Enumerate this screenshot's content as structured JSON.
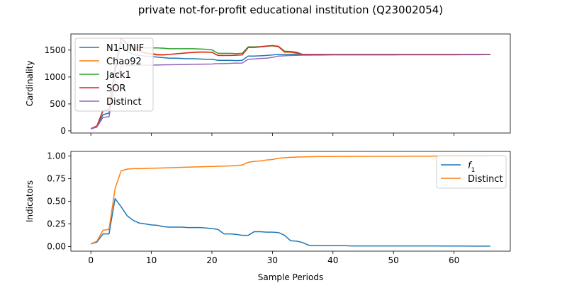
{
  "figure": {
    "title": "private not-for-profit educational institution (Q23002054)",
    "xlabel": "Sample Periods"
  },
  "chart_data": [
    {
      "type": "line",
      "ylabel": "Cardinality",
      "xlim": [
        -3.3,
        69.3
      ],
      "ylim": [
        -40,
        1800
      ],
      "xticks": [
        0,
        10,
        20,
        30,
        40,
        50,
        60
      ],
      "yticks": [
        0,
        500,
        1000,
        1500
      ],
      "show_xtick_labels": false,
      "legend": "top-left",
      "x": [
        0,
        1,
        2,
        3,
        4,
        5,
        6,
        7,
        8,
        9,
        10,
        11,
        12,
        13,
        14,
        15,
        16,
        17,
        18,
        19,
        20,
        21,
        22,
        23,
        24,
        25,
        26,
        27,
        28,
        29,
        30,
        31,
        32,
        33,
        34,
        35,
        36,
        37,
        38,
        39,
        40,
        41,
        42,
        43,
        44,
        45,
        46,
        47,
        48,
        49,
        50,
        51,
        52,
        53,
        54,
        55,
        56,
        57,
        58,
        59,
        60,
        61,
        62,
        63,
        64,
        65,
        66
      ],
      "series": [
        {
          "name": "N1-UNIF",
          "color": "#1f77b4",
          "values": [
            40,
            80,
            300,
            330,
            1080,
            1650,
            1480,
            1420,
            1400,
            1390,
            1380,
            1370,
            1360,
            1350,
            1350,
            1345,
            1340,
            1340,
            1335,
            1330,
            1330,
            1310,
            1310,
            1310,
            1305,
            1310,
            1390,
            1390,
            1395,
            1400,
            1410,
            1420,
            1420,
            1420,
            1420,
            1415,
            1415,
            1415,
            1415,
            1415,
            1415,
            1415,
            1415,
            1415,
            1415,
            1415,
            1415,
            1415,
            1415,
            1415,
            1415,
            1415,
            1415,
            1415,
            1415,
            1415,
            1415,
            1415,
            1415,
            1415,
            1415,
            1415,
            1415,
            1415,
            1415,
            1415,
            1415
          ]
        },
        {
          "name": "Chao92",
          "color": "#ff7f0e",
          "values": [
            40,
            90,
            380,
            400,
            1200,
            1700,
            1620,
            1560,
            1500,
            1460,
            1440,
            1420,
            1415,
            1420,
            1430,
            1440,
            1450,
            1455,
            1460,
            1460,
            1460,
            1400,
            1400,
            1400,
            1405,
            1410,
            1550,
            1550,
            1560,
            1570,
            1580,
            1560,
            1460,
            1460,
            1440,
            1420,
            1420,
            1420,
            1420,
            1420,
            1420,
            1420,
            1420,
            1420,
            1420,
            1420,
            1420,
            1420,
            1420,
            1420,
            1420,
            1420,
            1420,
            1420,
            1420,
            1420,
            1420,
            1420,
            1420,
            1420,
            1420,
            1420,
            1420,
            1420,
            1420,
            1420,
            1420
          ]
        },
        {
          "name": "Jack1",
          "color": "#2ca02c",
          "values": [
            40,
            90,
            380,
            400,
            1200,
            1720,
            1600,
            1560,
            1545,
            1540,
            1540,
            1540,
            1535,
            1525,
            1525,
            1525,
            1525,
            1525,
            1520,
            1515,
            1505,
            1440,
            1440,
            1440,
            1435,
            1440,
            1560,
            1560,
            1565,
            1575,
            1580,
            1570,
            1480,
            1475,
            1460,
            1420,
            1420,
            1420,
            1420,
            1420,
            1420,
            1420,
            1420,
            1420,
            1420,
            1420,
            1420,
            1420,
            1420,
            1420,
            1420,
            1420,
            1420,
            1420,
            1420,
            1420,
            1420,
            1420,
            1420,
            1420,
            1420,
            1420,
            1420,
            1420,
            1420,
            1420,
            1420
          ]
        },
        {
          "name": "SOR",
          "color": "#d62728",
          "values": [
            40,
            90,
            370,
            380,
            1150,
            1720,
            1620,
            1540,
            1480,
            1440,
            1420,
            1410,
            1410,
            1420,
            1430,
            1440,
            1450,
            1460,
            1465,
            1465,
            1460,
            1400,
            1400,
            1400,
            1405,
            1410,
            1550,
            1550,
            1560,
            1575,
            1585,
            1570,
            1470,
            1465,
            1450,
            1420,
            1420,
            1420,
            1420,
            1420,
            1420,
            1420,
            1420,
            1420,
            1420,
            1420,
            1420,
            1420,
            1420,
            1420,
            1420,
            1420,
            1420,
            1420,
            1420,
            1420,
            1420,
            1420,
            1420,
            1420,
            1420,
            1420,
            1420,
            1420,
            1420,
            1420,
            1420
          ]
        },
        {
          "name": "Distinct",
          "color": "#9467bd",
          "values": [
            35,
            70,
            250,
            260,
            900,
            1200,
            1210,
            1215,
            1220,
            1220,
            1222,
            1224,
            1226,
            1228,
            1230,
            1232,
            1234,
            1236,
            1238,
            1240,
            1242,
            1250,
            1250,
            1255,
            1258,
            1260,
            1330,
            1335,
            1345,
            1350,
            1365,
            1390,
            1395,
            1400,
            1402,
            1405,
            1406,
            1407,
            1408,
            1409,
            1410,
            1410,
            1410,
            1410,
            1410,
            1410,
            1410,
            1411,
            1411,
            1411,
            1411,
            1412,
            1412,
            1412,
            1412,
            1412,
            1413,
            1413,
            1413,
            1413,
            1413,
            1414,
            1414,
            1414,
            1414,
            1415,
            1415
          ]
        }
      ]
    },
    {
      "type": "line",
      "ylabel": "Indicators",
      "xlim": [
        -3.3,
        69.3
      ],
      "ylim": [
        -0.05,
        1.05
      ],
      "xticks": [
        0,
        10,
        20,
        30,
        40,
        50,
        60
      ],
      "yticks": [
        0.0,
        0.25,
        0.5,
        0.75,
        1.0
      ],
      "ytick_labels": [
        "0.00",
        "0.25",
        "0.50",
        "0.75",
        "1.00"
      ],
      "show_xtick_labels": true,
      "legend": "top-right",
      "x": [
        0,
        1,
        2,
        3,
        4,
        5,
        6,
        7,
        8,
        9,
        10,
        11,
        12,
        13,
        14,
        15,
        16,
        17,
        18,
        19,
        20,
        21,
        22,
        23,
        24,
        25,
        26,
        27,
        28,
        29,
        30,
        31,
        32,
        33,
        34,
        35,
        36,
        37,
        38,
        39,
        40,
        41,
        42,
        43,
        44,
        45,
        46,
        47,
        48,
        49,
        50,
        51,
        52,
        53,
        54,
        55,
        56,
        57,
        58,
        59,
        60,
        61,
        62,
        63,
        64,
        65,
        66
      ],
      "series": [
        {
          "name": "f",
          "name_sub": "1",
          "color": "#1f77b4",
          "values": [
            0.03,
            0.05,
            0.14,
            0.14,
            0.53,
            0.44,
            0.34,
            0.29,
            0.26,
            0.25,
            0.24,
            0.235,
            0.22,
            0.215,
            0.215,
            0.215,
            0.21,
            0.21,
            0.21,
            0.205,
            0.2,
            0.19,
            0.14,
            0.14,
            0.135,
            0.125,
            0.125,
            0.165,
            0.165,
            0.16,
            0.16,
            0.155,
            0.125,
            0.065,
            0.06,
            0.045,
            0.015,
            0.012,
            0.01,
            0.01,
            0.01,
            0.01,
            0.01,
            0.008,
            0.008,
            0.008,
            0.008,
            0.008,
            0.008,
            0.008,
            0.008,
            0.008,
            0.008,
            0.008,
            0.008,
            0.008,
            0.008,
            0.008,
            0.007,
            0.007,
            0.007,
            0.007,
            0.007,
            0.006,
            0.006,
            0.006,
            0.006
          ]
        },
        {
          "name": "Distinct",
          "color": "#ff7f0e",
          "values": [
            0.03,
            0.06,
            0.18,
            0.19,
            0.64,
            0.835,
            0.855,
            0.86,
            0.86,
            0.862,
            0.865,
            0.866,
            0.868,
            0.87,
            0.872,
            0.874,
            0.876,
            0.878,
            0.88,
            0.882,
            0.884,
            0.886,
            0.888,
            0.89,
            0.895,
            0.9,
            0.93,
            0.94,
            0.945,
            0.955,
            0.96,
            0.975,
            0.98,
            0.985,
            0.988,
            0.99,
            0.991,
            0.992,
            0.993,
            0.993,
            0.994,
            0.994,
            0.994,
            0.995,
            0.995,
            0.995,
            0.995,
            0.996,
            0.996,
            0.996,
            0.996,
            0.996,
            0.997,
            0.997,
            0.997,
            0.997,
            0.997,
            0.998,
            0.998,
            0.998,
            0.998,
            0.998,
            0.999,
            0.999,
            0.999,
            0.999,
            0.999
          ]
        }
      ]
    }
  ]
}
